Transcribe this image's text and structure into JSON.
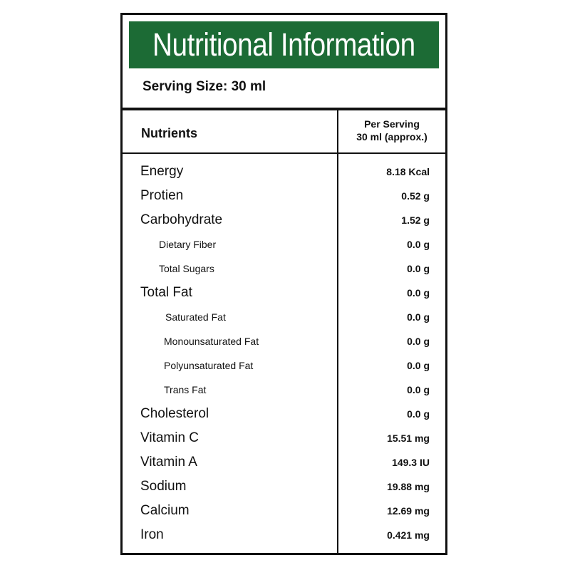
{
  "title": "Nutritional Information",
  "serving_size": "Serving Size: 30 ml",
  "header": {
    "nutrients": "Nutrients",
    "per_serving_line1": "Per Serving",
    "per_serving_line2": "30 ml (approx.)"
  },
  "rows": [
    {
      "name": "Energy",
      "value": "8.18 Kcal"
    },
    {
      "name": "Protien",
      "value": "0.52 g"
    },
    {
      "name": "Carbohydrate",
      "value": "1.52 g"
    },
    {
      "name": "Dietary Fiber",
      "value": "0.0 g"
    },
    {
      "name": "Total Sugars",
      "value": "0.0 g"
    },
    {
      "name": "Total Fat",
      "value": "0.0 g"
    },
    {
      "name": "Saturated Fat",
      "value": "0.0 g"
    },
    {
      "name": "Monounsaturated Fat",
      "value": "0.0 g"
    },
    {
      "name": "Polyunsaturated Fat",
      "value": "0.0 g"
    },
    {
      "name": "Trans Fat",
      "value": "0.0 g"
    },
    {
      "name": "Cholesterol",
      "value": "0.0 g"
    },
    {
      "name": "Vitamin C",
      "value": "15.51 mg"
    },
    {
      "name": "Vitamin A",
      "value": "149.3 IU"
    },
    {
      "name": "Sodium",
      "value": "19.88 mg"
    },
    {
      "name": "Calcium",
      "value": "12.69 mg"
    },
    {
      "name": "Iron",
      "value": "0.421 mg"
    }
  ],
  "colors": {
    "title_bar": "#1c6b35",
    "border": "#111111"
  }
}
